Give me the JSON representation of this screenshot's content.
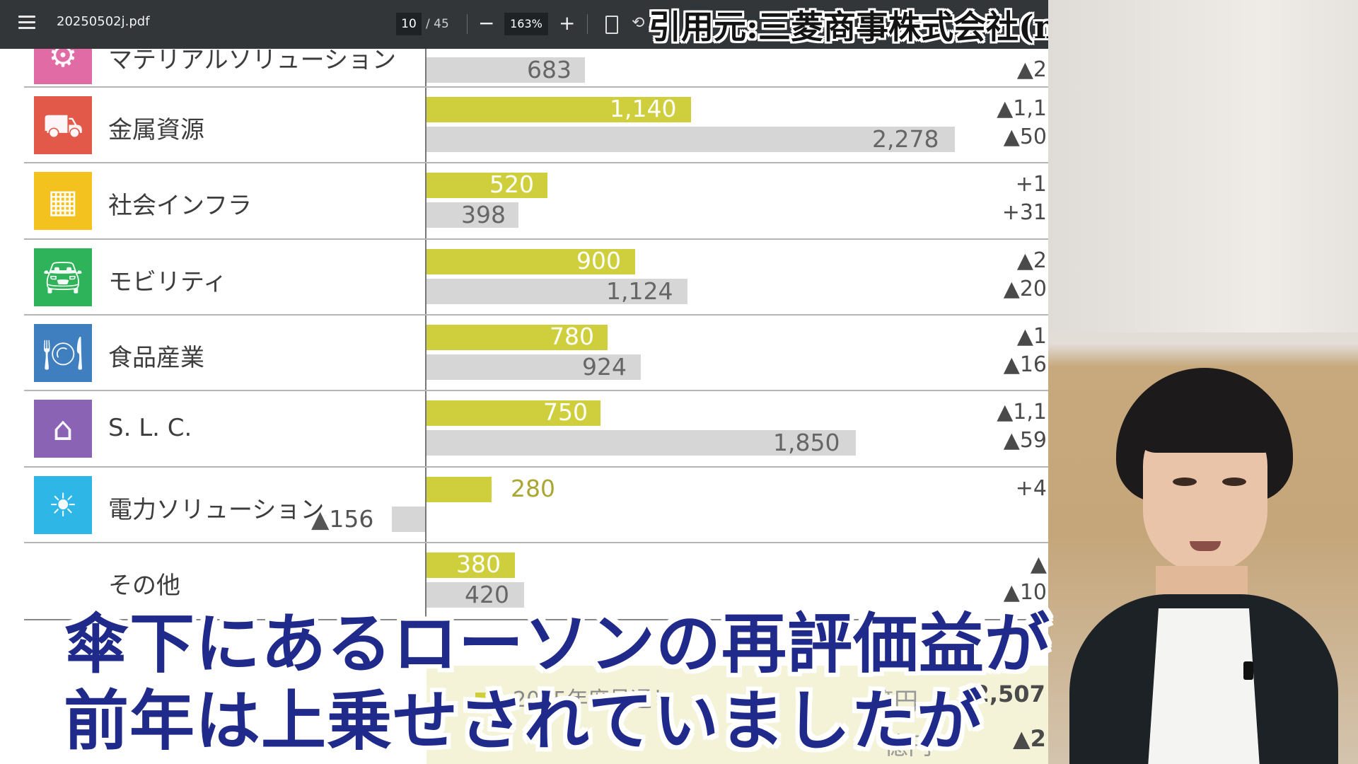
{
  "toolbar": {
    "filename": "20250502j.pdf",
    "page_current": "10",
    "page_total": "/ 45",
    "zoom": "163%",
    "minus": "−",
    "plus": "+",
    "rotate": "⟲"
  },
  "credit": "引用元:三菱商事株式会社(mitsubishicorp.com)",
  "segments": [
    {
      "label": "マテリアルソリューション",
      "color": "#e06ba5",
      "bar_y": null,
      "bar_g": "683",
      "diff": "▲2"
    },
    {
      "label": "金属資源",
      "color": "#e2594a",
      "bar_y": "1,140",
      "bar_g": "2,278",
      "diff1": "▲1,1",
      "diff2": "▲50"
    },
    {
      "label": "社会インフラ",
      "color": "#f3c21e",
      "bar_y": "520",
      "bar_g": "398",
      "diff1": "+1",
      "diff2": "+31"
    },
    {
      "label": "モビリティ",
      "color": "#2fb35a",
      "bar_y": "900",
      "bar_g": "1,124",
      "diff1": "▲2",
      "diff2": "▲20"
    },
    {
      "label": "食品産業",
      "color": "#3f7fc0",
      "bar_y": "780",
      "bar_g": "924",
      "diff1": "▲1",
      "diff2": "▲16"
    },
    {
      "label": "S. L. C.",
      "color": "#8b63b5",
      "bar_y": "750",
      "bar_g": "1,850",
      "diff1": "▲1,1",
      "diff2": "▲59"
    },
    {
      "label": "電力ソリューション",
      "color": "#2eb6e6",
      "bar_y": "280",
      "neg": "▲156",
      "diff1": "+4"
    },
    {
      "label": "その他",
      "bar_y": "380",
      "bar_g": "420",
      "diff1": "▲",
      "diff2": "▲10"
    }
  ],
  "summary": {
    "label": "2025年度見通し",
    "unit1": "億円",
    "diff1": "▲2,507",
    "unit2": "億円",
    "diff2": "▲2"
  },
  "subtitles": {
    "line1": "傘下にあるローソンの再評価益が",
    "line2": "前年は上乗せされていましたが"
  }
}
